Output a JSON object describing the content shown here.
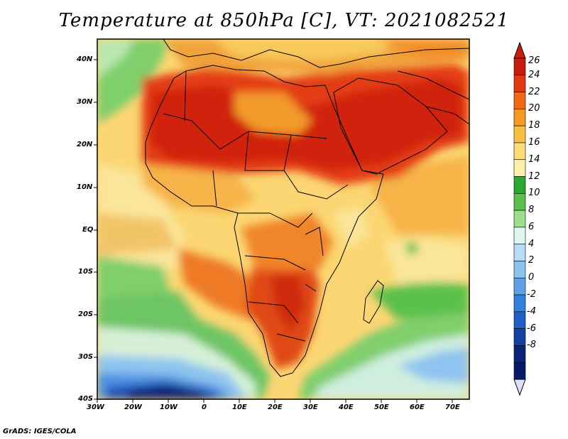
{
  "title": "Temperature at 850hPa [C], VT: 2021082521",
  "footer": "GrADS: IGES/COLA",
  "map": {
    "lon_labels": [
      "30W",
      "20W",
      "10W",
      "0",
      "10E",
      "20E",
      "30E",
      "40E",
      "50E",
      "60E",
      "70E"
    ],
    "lat_labels": [
      "40N",
      "30N",
      "20N",
      "10N",
      "EQ",
      "10S",
      "20S",
      "30S",
      "40S"
    ]
  },
  "colorbar": {
    "labels": [
      "26",
      "24",
      "22",
      "20",
      "18",
      "16",
      "14",
      "12",
      "10",
      "8",
      "6",
      "4",
      "2",
      "0",
      "-2",
      "-4",
      "-6",
      "-8"
    ],
    "colors": [
      "#c81c0f",
      "#e03a10",
      "#ee6a14",
      "#f49a22",
      "#f8bf45",
      "#fbdc76",
      "#fdf0a8",
      "#2ea636",
      "#5cc14c",
      "#9ae08c",
      "#dff5ee",
      "#b6dcf6",
      "#8cc4f0",
      "#5ea2e6",
      "#3580dc",
      "#1e5ec6",
      "#1541a4",
      "#0c247a",
      "#071a6a"
    ],
    "top_color": "#c81c0f",
    "bottom_color": "#dde0f6"
  }
}
